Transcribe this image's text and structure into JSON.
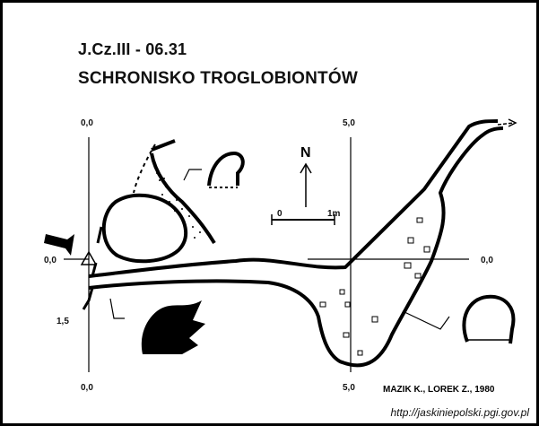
{
  "map": {
    "code": "J.Cz.III - 06.31",
    "name": "SCHRONISKO TROGLOBIONTÓW",
    "north_label": "N",
    "scale": {
      "start": "0",
      "end": "1m"
    },
    "grid": {
      "x_top_left": "0,0",
      "x_top_right": "5,0",
      "x_bottom_left": "0,0",
      "x_bottom_right": "5,0",
      "y_left": "0,0",
      "y_right": "0,0",
      "height_mark": "1,5"
    },
    "authors": "MAZIK K., LOREK Z., 1980",
    "source_url": "http://jaskiniepolski.pgi.gov.pl"
  }
}
